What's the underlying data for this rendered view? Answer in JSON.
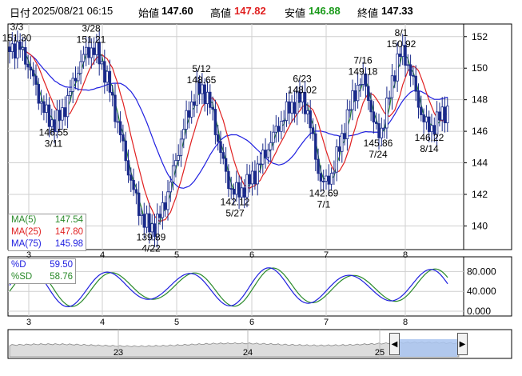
{
  "header": {
    "date_label": "日付",
    "datetime": "2025/08/21 06:15",
    "open_label": "始値",
    "open": "147.60",
    "high_label": "高値",
    "high": "147.82",
    "low_label": "安値",
    "low": "146.88",
    "close_label": "終値",
    "close": "147.33"
  },
  "colors": {
    "up": "#ffffff",
    "down": "#1a2a8a",
    "ma5": "#2a8a2a",
    "ma25": "#e02020",
    "ma75": "#2020e0",
    "d": "#2020e0",
    "sd": "#2a8a2a",
    "nav_fill": "#a9c4f0"
  },
  "main_axis": {
    "y_ticks": [
      "152",
      "150",
      "148",
      "146",
      "144",
      "142",
      "140"
    ],
    "y_range": [
      138.5,
      152.8
    ]
  },
  "months": [
    "3",
    "4",
    "5",
    "6",
    "7",
    "8"
  ],
  "legend_ma": [
    {
      "label": "MA(5)",
      "value": "147.54",
      "color": "#2a8a2a"
    },
    {
      "label": "MA(25)",
      "value": "147.80",
      "color": "#e02020"
    },
    {
      "label": "MA(75)",
      "value": "145.98",
      "color": "#2020e0"
    }
  ],
  "annotations": [
    {
      "price": "151.30",
      "date": "3/3",
      "pos": "above"
    },
    {
      "price": "146.55",
      "date": "3/11",
      "pos": "below"
    },
    {
      "price": "151.21",
      "date": "3/28",
      "pos": "above"
    },
    {
      "price": "139.89",
      "date": "4/22",
      "pos": "below"
    },
    {
      "price": "148.65",
      "date": "5/12",
      "pos": "above"
    },
    {
      "price": "142.12",
      "date": "5/27",
      "pos": "below"
    },
    {
      "price": "148.02",
      "date": "6/23",
      "pos": "above"
    },
    {
      "price": "142.69",
      "date": "7/1",
      "pos": "below"
    },
    {
      "price": "149.18",
      "date": "7/16",
      "pos": "above"
    },
    {
      "price": "145.86",
      "date": "7/24",
      "pos": "below"
    },
    {
      "price": "150.92",
      "date": "8/1",
      "pos": "above"
    },
    {
      "price": "146.22",
      "date": "8/14",
      "pos": "below"
    }
  ],
  "legend_osc": [
    {
      "label": "%D",
      "value": "59.50",
      "color": "#2020e0"
    },
    {
      "label": "%SD",
      "value": "58.76",
      "color": "#2a8a2a"
    }
  ],
  "osc_axis": {
    "y_ticks": [
      "80.000",
      "40.000",
      "0.000"
    ]
  },
  "navigator": {
    "labels": [
      "23",
      "24",
      "25"
    ],
    "left_button": "◀",
    "right_button": "▶"
  },
  "chart_data": {
    "type": "candlestick",
    "x_start": "2025-03-03",
    "x_end": "2025-08-21",
    "ylim": [
      138.5,
      152.8
    ],
    "key_points": [
      {
        "date": "3/3",
        "value": 151.3
      },
      {
        "date": "3/11",
        "value": 146.55
      },
      {
        "date": "3/28",
        "value": 151.21
      },
      {
        "date": "4/22",
        "value": 139.89
      },
      {
        "date": "5/12",
        "value": 148.65
      },
      {
        "date": "5/27",
        "value": 142.12
      },
      {
        "date": "6/23",
        "value": 148.02
      },
      {
        "date": "7/1",
        "value": 142.69
      },
      {
        "date": "7/16",
        "value": 149.18
      },
      {
        "date": "7/24",
        "value": 145.86
      },
      {
        "date": "8/1",
        "value": 150.92
      },
      {
        "date": "8/14",
        "value": 146.22
      },
      {
        "date": "8/21",
        "value": 147.33
      }
    ],
    "indicators": {
      "MA(5)": 147.54,
      "MA(25)": 147.8,
      "MA(75)": 145.98,
      "%D": 59.5,
      "%SD": 58.76
    }
  }
}
